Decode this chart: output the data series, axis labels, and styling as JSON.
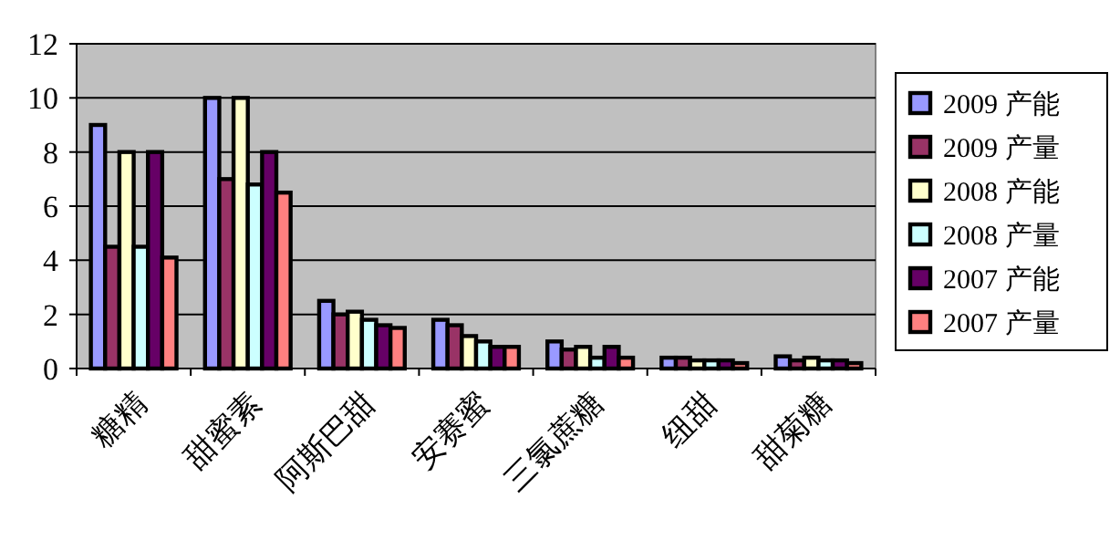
{
  "chart_data": {
    "type": "bar",
    "categories": [
      "糖精",
      "甜蜜素",
      "阿斯巴甜",
      "安赛蜜",
      "三氯蔗糖",
      "纽甜",
      "甜菊糖"
    ],
    "series": [
      {
        "name": "2009 产能",
        "color": "#9999ff",
        "values": [
          9,
          10,
          2.5,
          1.8,
          1.0,
          0.4,
          0.45
        ]
      },
      {
        "name": "2009 产量",
        "color": "#993366",
        "values": [
          4.5,
          7,
          2,
          1.6,
          0.7,
          0.4,
          0.3
        ]
      },
      {
        "name": "2008 产能",
        "color": "#ffffcc",
        "values": [
          8,
          10,
          2.1,
          1.2,
          0.8,
          0.3,
          0.4
        ]
      },
      {
        "name": "2008 产量",
        "color": "#ccffff",
        "values": [
          4.5,
          6.8,
          1.8,
          1.0,
          0.4,
          0.3,
          0.3
        ]
      },
      {
        "name": "2007 产能",
        "color": "#660066",
        "values": [
          8,
          8,
          1.6,
          0.8,
          0.8,
          0.3,
          0.3
        ]
      },
      {
        "name": "2007 产量",
        "color": "#ff8080",
        "values": [
          4.1,
          6.5,
          1.5,
          0.8,
          0.4,
          0.2,
          0.2
        ]
      }
    ],
    "ylim": [
      0,
      12
    ],
    "yticks": [
      0,
      2,
      4,
      6,
      8,
      10,
      12
    ],
    "grid": "y",
    "legend": "right"
  }
}
